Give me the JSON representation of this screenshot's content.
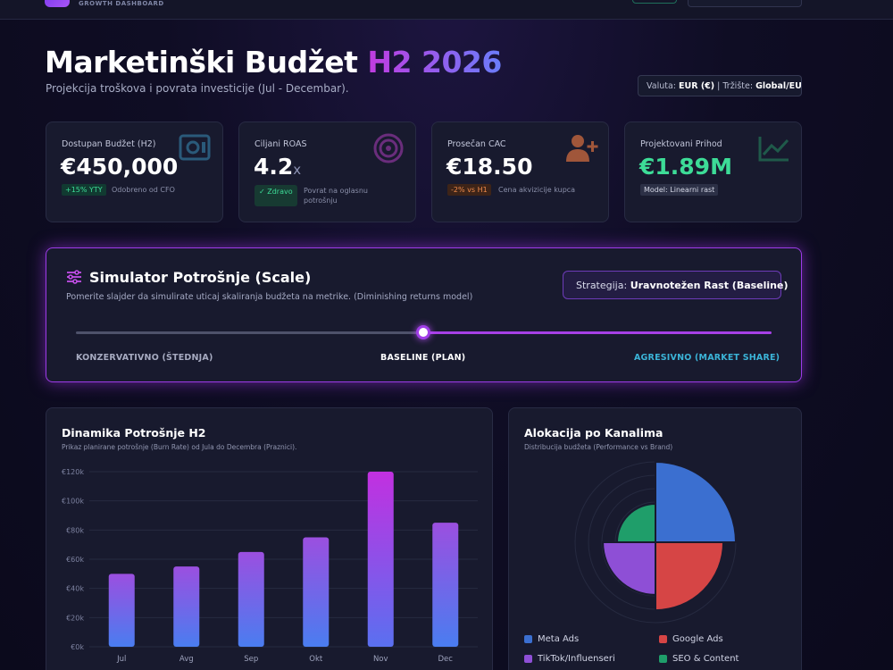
{
  "header": {
    "subtitle_brand": "GROWTH DASHBOARD"
  },
  "page": {
    "title_main": "Marketinški Budžet ",
    "title_highlight": "H2 2026",
    "subtitle": "Projekcija troškova i povrata investicije (Jul - Decembar).",
    "currency_label": "Valuta: ",
    "currency_value": "EUR (€)",
    "market_label": " | Tržište: ",
    "market_value": "Global/EU"
  },
  "kpis": [
    {
      "label": "Dostupan Budžet (H2)",
      "value": "€450,000",
      "badge": "+15% YTY",
      "note": "Odobreno od CFO",
      "icon": "safe-icon"
    },
    {
      "label": "Ciljani ROAS",
      "value": "4.2",
      "unit": "x",
      "badge": "✓ Zdravo",
      "note": "Povrat na oglasnu potrošnju",
      "icon": "target-icon"
    },
    {
      "label": "Prosečan CAC",
      "value": "€18.50",
      "badge": "-2% vs H1",
      "note": "Cena akvizicije kupca",
      "icon": "add-user-icon"
    },
    {
      "label": "Projektovani Prihod",
      "value": "€1.89M",
      "badge": "Model: Linearni rast",
      "icon": "trend-chart-icon"
    }
  ],
  "simulator": {
    "title": "Simulator Potrošnje (Scale)",
    "description": "Pomerite slajder da simulirate uticaj skaliranja budžeta na metrike. (Diminishing returns model)",
    "strategy_label": "Strategija: ",
    "strategy_value": "Uravnotežen Rast (Baseline)",
    "slider_value": 0.5,
    "labels": {
      "left": "KONZERVATIVNO (ŠTEDNJA)",
      "center": "BASELINE (PLAN)",
      "right": "AGRESIVNO (MARKET SHARE)"
    },
    "colors": {
      "accent": "#a640e6",
      "right_label": "#3bb4d8"
    }
  },
  "spend_chart": {
    "title": "Dinamika Potrošnje H2",
    "subtitle": "Prikaz planirane potrošnje (Burn Rate) od Jula do Decembra (Praznici)."
  },
  "allocation_chart": {
    "title": "Alokacija po Kanalima",
    "subtitle": "Distribucija budžeta (Performance vs Brand)"
  },
  "chart_data": [
    {
      "type": "bar",
      "categories": [
        "Jul",
        "Avg",
        "Sep",
        "Okt",
        "Nov",
        "Dec"
      ],
      "values": [
        50000,
        55000,
        65000,
        75000,
        120000,
        85000
      ],
      "ylim": [
        0,
        120000
      ],
      "yticks": [
        "€0k",
        "€20k",
        "€40k",
        "€60k",
        "€80k",
        "€100k",
        "€120k"
      ],
      "grid": true
    },
    {
      "type": "pie",
      "categories": [
        "Meta Ads",
        "Google Ads",
        "TikTok/Influenseri",
        "SEO & Content"
      ],
      "values": [
        35,
        25,
        15,
        8
      ],
      "colors": [
        "#3b6fd0",
        "#d64545",
        "#8e4fd6",
        "#1f9e6a"
      ]
    }
  ]
}
